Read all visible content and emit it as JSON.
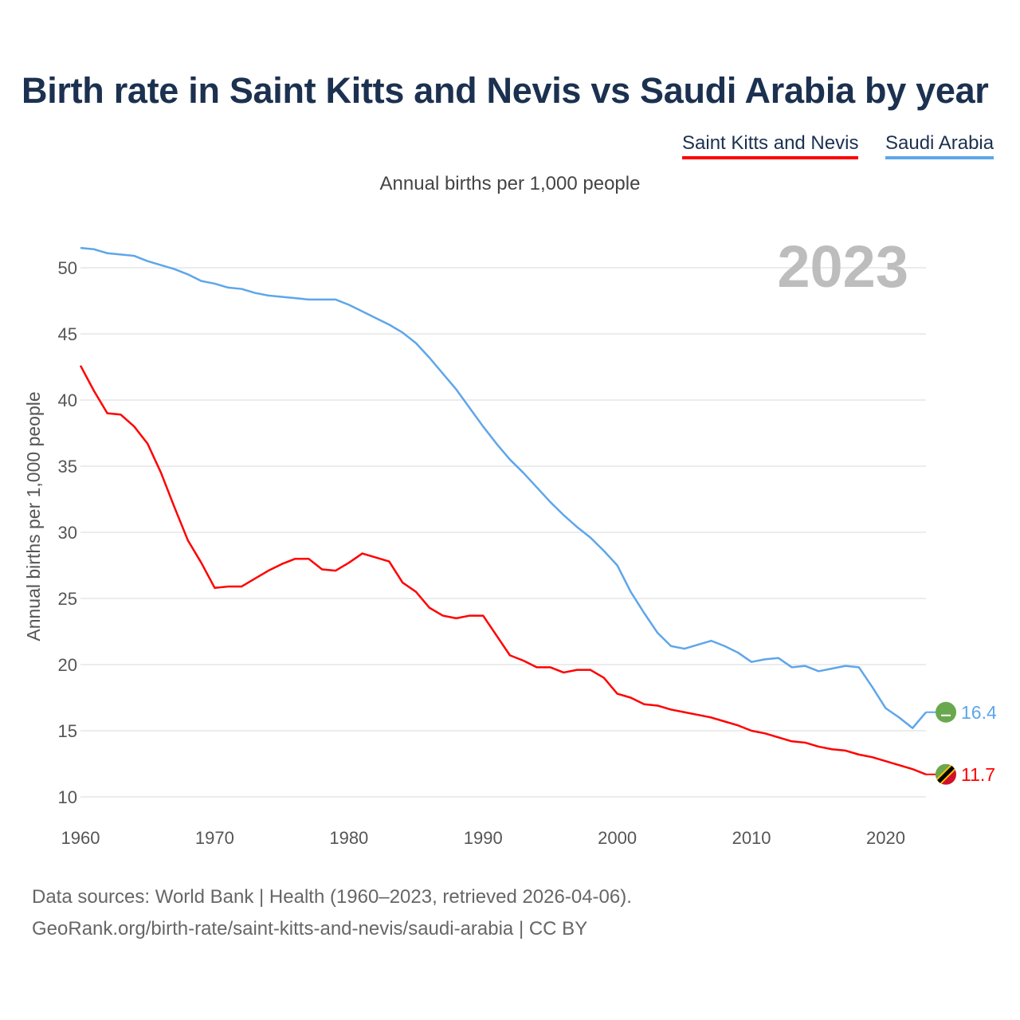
{
  "title": "Birth rate in Saint Kitts and Nevis vs Saudi Arabia by year",
  "subtitle": "Annual births per 1,000 people",
  "year_label": "2023",
  "source": {
    "line1": "Data sources: World Bank | Health (1960–2023, retrieved 2026-04-06).",
    "line2": "GeoRank.org/birth-rate/saint-kitts-and-nevis/saudi-arabia | CC BY"
  },
  "chart_data": {
    "type": "line",
    "title": "Birth rate in Saint Kitts and Nevis vs Saudi Arabia by year",
    "xlabel": "",
    "ylabel": "Annual births per 1,000 people",
    "xlim": [
      1960,
      2023
    ],
    "ylim": [
      10,
      52
    ],
    "x_ticks": [
      "1960",
      "1970",
      "1980",
      "1990",
      "2000",
      "2010",
      "2020"
    ],
    "y_ticks": [
      "10",
      "15",
      "20",
      "25",
      "30",
      "35",
      "40",
      "45",
      "50"
    ],
    "grid": true,
    "legend_position": "top-right",
    "x": [
      1960,
      1961,
      1962,
      1963,
      1964,
      1965,
      1966,
      1967,
      1968,
      1969,
      1970,
      1971,
      1972,
      1973,
      1974,
      1975,
      1976,
      1977,
      1978,
      1979,
      1980,
      1981,
      1982,
      1983,
      1984,
      1985,
      1986,
      1987,
      1988,
      1989,
      1990,
      1991,
      1992,
      1993,
      1994,
      1995,
      1996,
      1997,
      1998,
      1999,
      2000,
      2001,
      2002,
      2003,
      2004,
      2005,
      2006,
      2007,
      2008,
      2009,
      2010,
      2011,
      2012,
      2013,
      2014,
      2015,
      2016,
      2017,
      2018,
      2019,
      2020,
      2021,
      2022,
      2023
    ],
    "series": [
      {
        "name": "Saint Kitts and Nevis",
        "color": "#ff0000",
        "end_label": "11.7",
        "values": [
          42.6,
          40.7,
          39.0,
          38.9,
          38.0,
          36.7,
          34.5,
          31.9,
          29.4,
          27.7,
          25.8,
          25.9,
          25.9,
          26.5,
          27.1,
          27.6,
          28.0,
          28.0,
          27.2,
          27.1,
          27.7,
          28.4,
          28.1,
          27.8,
          26.2,
          25.5,
          24.3,
          23.7,
          23.5,
          23.7,
          23.7,
          22.2,
          20.7,
          20.3,
          19.8,
          19.8,
          19.4,
          19.6,
          19.6,
          19.0,
          17.8,
          17.5,
          17.0,
          16.9,
          16.6,
          16.4,
          16.2,
          16.0,
          15.7,
          15.4,
          15.0,
          14.8,
          14.5,
          14.2,
          14.1,
          13.8,
          13.6,
          13.5,
          13.2,
          13.0,
          12.7,
          12.4,
          12.1,
          11.7
        ]
      },
      {
        "name": "Saudi Arabia",
        "color": "#5ea6ea",
        "end_label": "16.4",
        "values": [
          51.5,
          51.4,
          51.1,
          51.0,
          50.9,
          50.5,
          50.2,
          49.9,
          49.5,
          49.0,
          48.8,
          48.5,
          48.4,
          48.1,
          47.9,
          47.8,
          47.7,
          47.6,
          47.6,
          47.6,
          47.2,
          46.7,
          46.2,
          45.7,
          45.1,
          44.3,
          43.2,
          42.0,
          40.8,
          39.4,
          38.0,
          36.7,
          35.5,
          34.5,
          33.4,
          32.3,
          31.3,
          30.4,
          29.6,
          28.6,
          27.5,
          25.5,
          23.9,
          22.4,
          21.4,
          21.2,
          21.5,
          21.8,
          21.4,
          20.9,
          20.2,
          20.4,
          20.5,
          19.8,
          19.9,
          19.5,
          19.7,
          19.9,
          19.8,
          18.3,
          16.7,
          16.0,
          15.2,
          16.4
        ]
      }
    ]
  }
}
